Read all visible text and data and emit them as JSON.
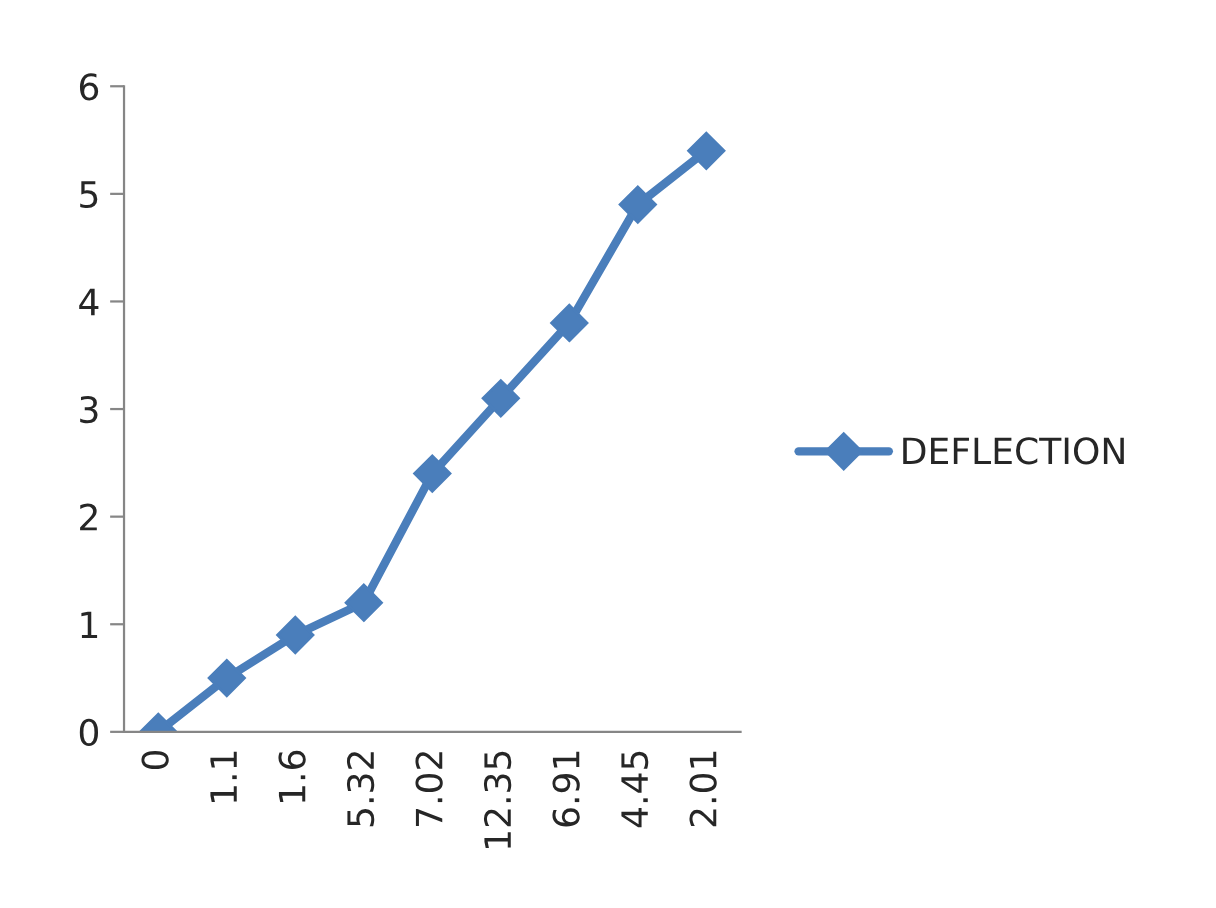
{
  "chart_data": {
    "type": "line",
    "categories": [
      "0",
      "1.1",
      "1.6",
      "5.32",
      "7.02",
      "12.35",
      "6.91",
      "4.45",
      "2.01"
    ],
    "series": [
      {
        "name": "DEFLECTION",
        "color": "#4a7ebb",
        "values": [
          0,
          0.5,
          0.9,
          1.2,
          2.4,
          3.1,
          3.8,
          4.9,
          5.4
        ]
      }
    ],
    "ylim": [
      0,
      6
    ],
    "yticks": [
      0,
      1,
      2,
      3,
      4,
      5,
      6
    ],
    "marker": "diamond",
    "line_style": "solid",
    "legend": "right",
    "grid": false
  }
}
